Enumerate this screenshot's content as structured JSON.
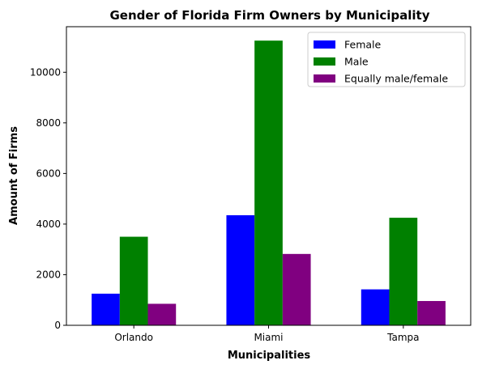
{
  "chart_data": {
    "type": "bar",
    "title": "Gender of Florida Firm Owners by Municipality",
    "xlabel": "Municipalities",
    "ylabel": "Amount of Firms",
    "categories": [
      "Orlando",
      "Miami",
      "Tampa"
    ],
    "series": [
      {
        "name": "Female",
        "color": "#0000ff",
        "values": [
          1250,
          4350,
          1420
        ]
      },
      {
        "name": "Male",
        "color": "#008000",
        "values": [
          3500,
          11250,
          4250
        ]
      },
      {
        "name": "Equally male/female",
        "color": "#800080",
        "values": [
          850,
          2820,
          960
        ]
      }
    ],
    "ylim": [
      0,
      11800
    ],
    "yticks": [
      0,
      2000,
      4000,
      6000,
      8000,
      10000
    ],
    "grid": false,
    "legend_position": "top-right"
  }
}
